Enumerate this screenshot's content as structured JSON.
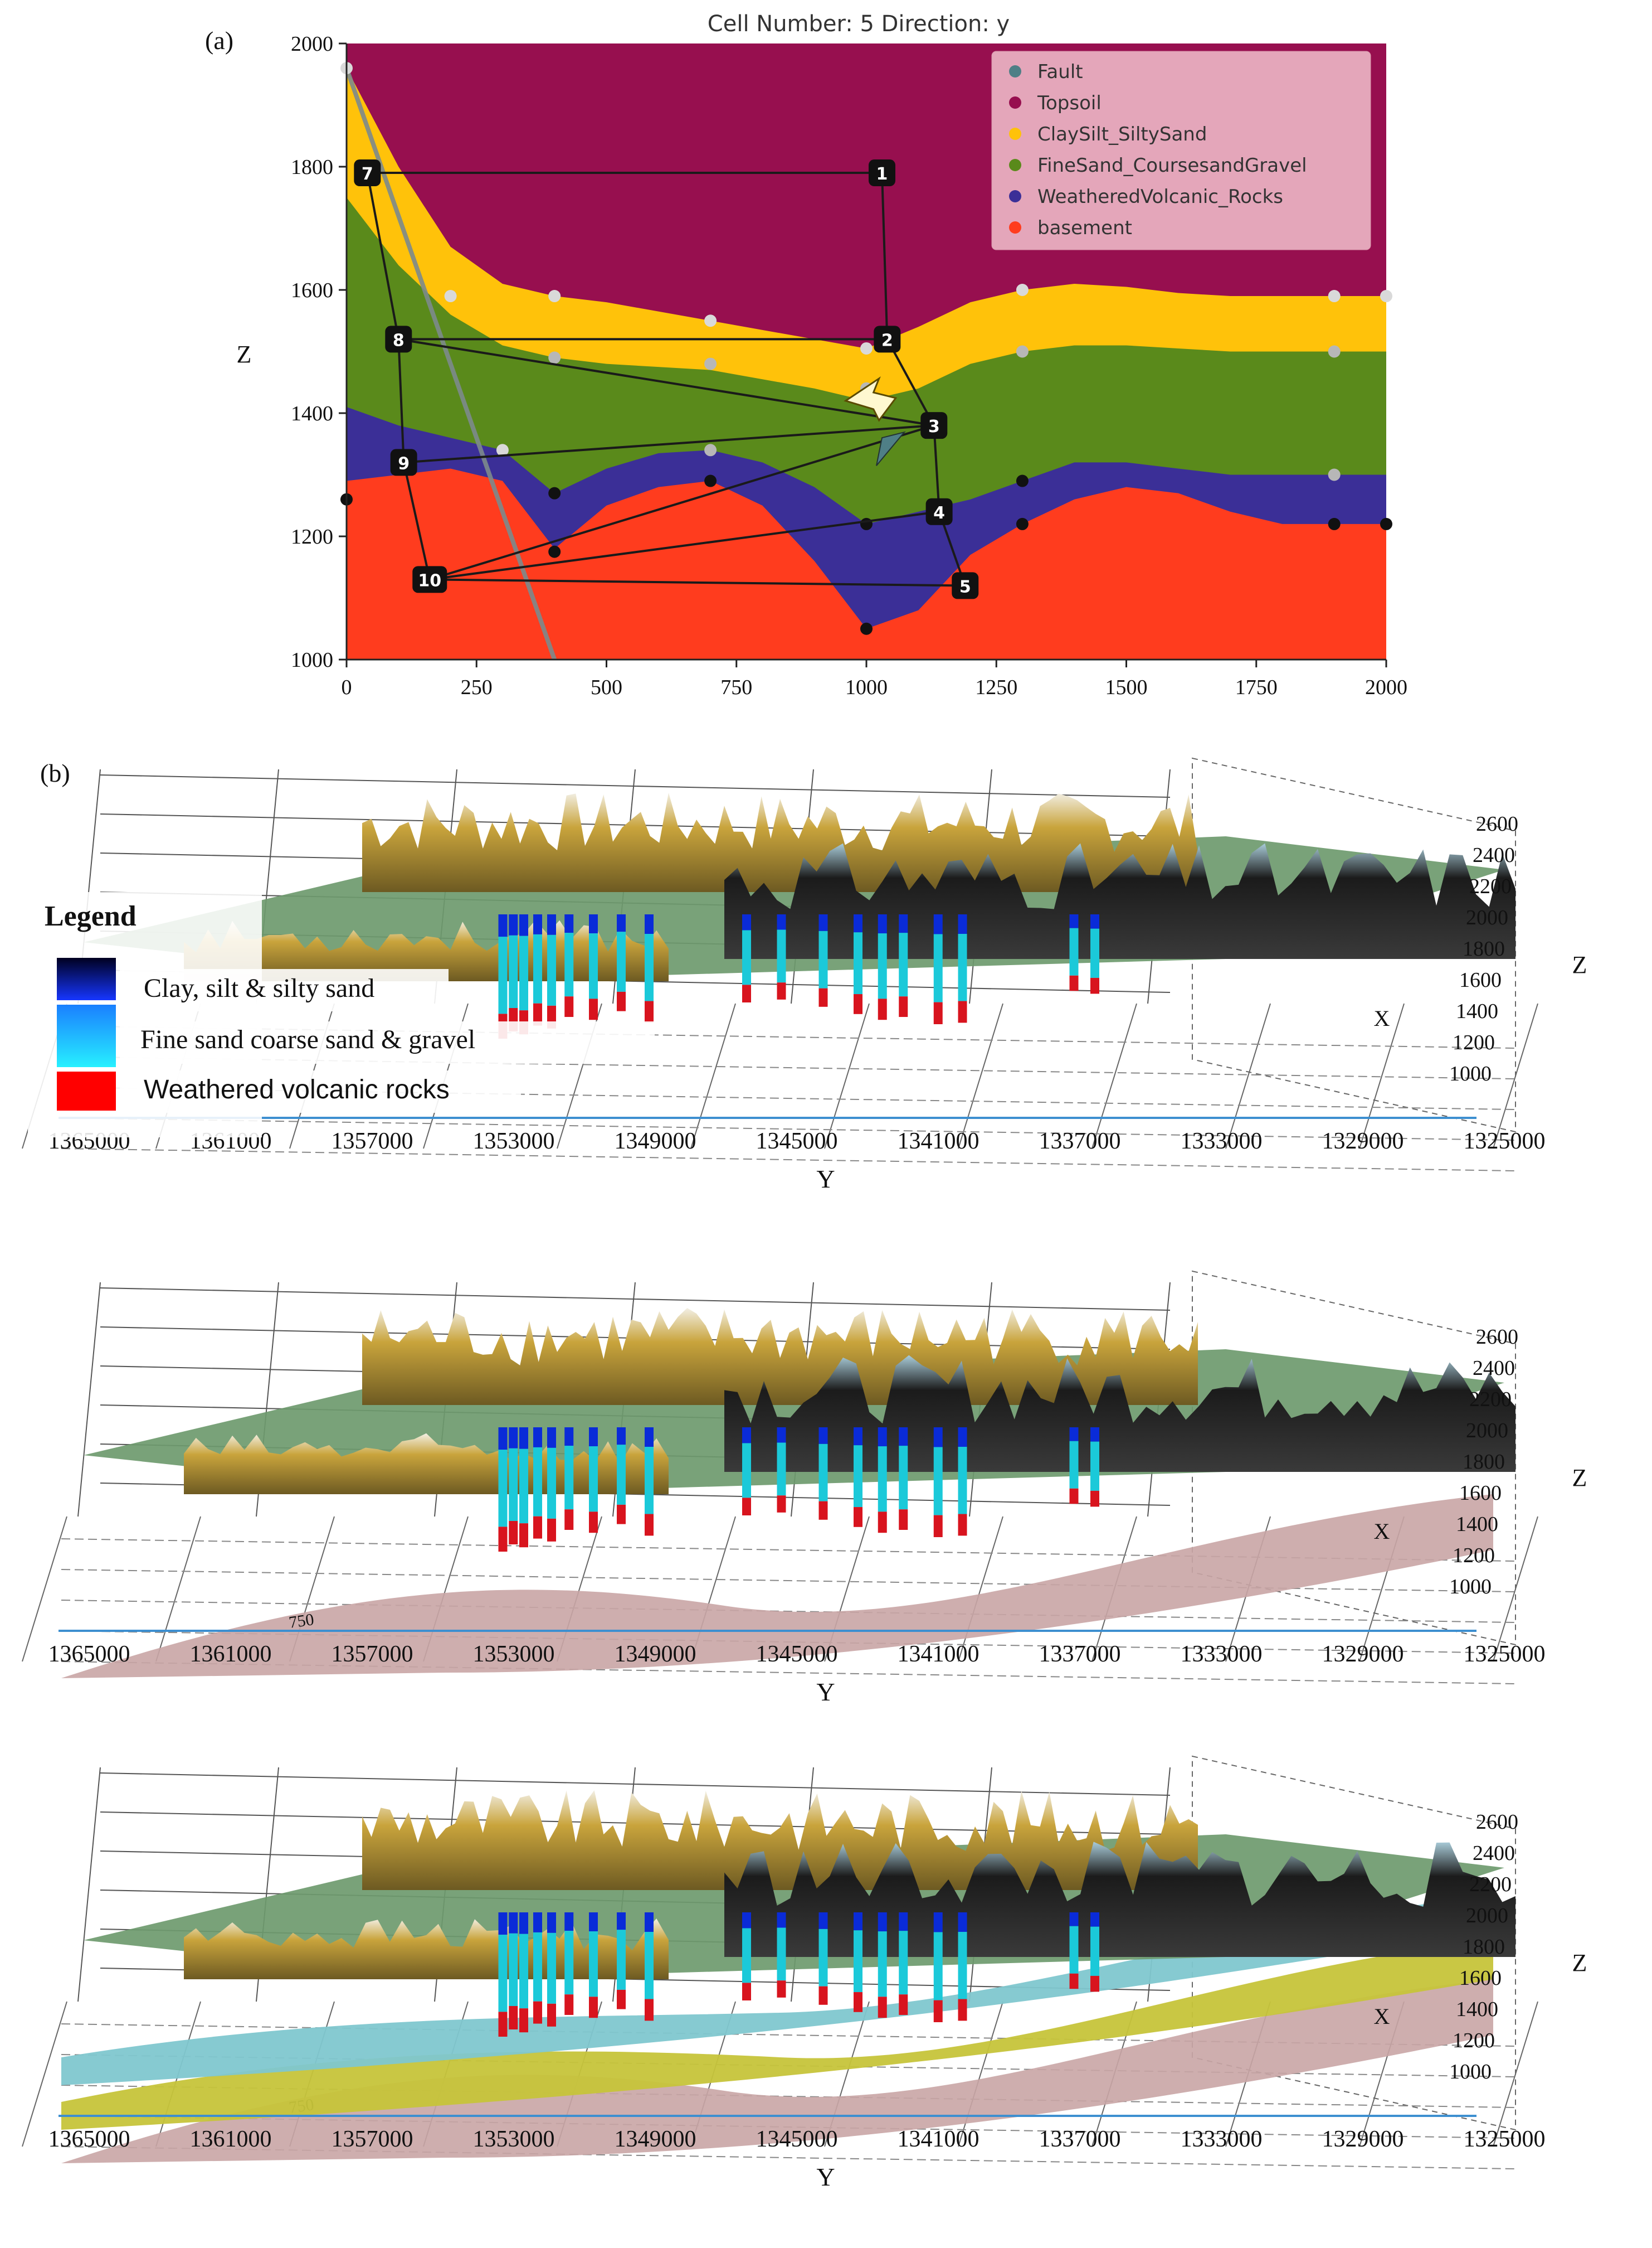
{
  "figure": {
    "panel_a_label": "(a)",
    "panel_b_label": "(b)"
  },
  "colors": {
    "fault": "#4f7f86",
    "topsoil": "#970f4f",
    "clay": "#ffc20a",
    "finesand": "#5a8a1b",
    "volcanic": "#3b2f97",
    "basement": "#ff3c1e",
    "well_clay": "#0a2bd8",
    "well_sand": "#1bc9d9",
    "well_volc": "#d8141e",
    "terrain_green": "#6e9a6e",
    "terrain_gold": "#c9a43c",
    "surface_pink": "#c9a5a5",
    "surface_cyan": "#7fc7cf",
    "surface_yellow": "#c6c43a"
  },
  "chart_data": [
    {
      "type": "area",
      "title": "Cell Number: 5 Direction: y",
      "xlabel": "",
      "ylabel": "Z",
      "xlim": [
        0,
        2000
      ],
      "ylim": [
        1000,
        2000
      ],
      "xticks": [
        0,
        250,
        500,
        750,
        1000,
        1250,
        1500,
        1750,
        2000
      ],
      "yticks": [
        1000,
        1200,
        1400,
        1600,
        1800,
        2000
      ],
      "legend": [
        "Fault",
        "Topsoil",
        "ClaySilt_SiltySand",
        "FineSand_CoursesandGravel",
        "WeatheredVolcanic_Rocks",
        "basement"
      ],
      "legend_position": "top-right",
      "layers": {
        "x": [
          0,
          100,
          200,
          300,
          400,
          500,
          600,
          700,
          800,
          900,
          1000,
          1100,
          1200,
          1300,
          1400,
          1500,
          1600,
          1700,
          1800,
          1900,
          2000
        ],
        "clay_top": [
          1960,
          1800,
          1670,
          1610,
          1590,
          1580,
          1565,
          1550,
          1535,
          1520,
          1505,
          1540,
          1580,
          1600,
          1610,
          1605,
          1595,
          1590,
          1590,
          1590,
          1590
        ],
        "sand_top": [
          1750,
          1640,
          1560,
          1510,
          1490,
          1480,
          1475,
          1470,
          1455,
          1440,
          1420,
          1440,
          1480,
          1500,
          1510,
          1510,
          1505,
          1500,
          1500,
          1500,
          1500
        ],
        "volc_top": [
          1410,
          1380,
          1360,
          1340,
          1270,
          1310,
          1335,
          1340,
          1320,
          1280,
          1220,
          1240,
          1260,
          1290,
          1320,
          1320,
          1310,
          1300,
          1300,
          1300,
          1300
        ],
        "basement_top": [
          1290,
          1300,
          1310,
          1290,
          1180,
          1250,
          1280,
          1290,
          1250,
          1160,
          1050,
          1080,
          1170,
          1220,
          1260,
          1280,
          1270,
          1240,
          1220,
          1220,
          1220
        ]
      },
      "fault_line": {
        "x": [
          0,
          400
        ],
        "z": [
          1960,
          1000
        ]
      },
      "surface_points": {
        "x": [
          0,
          200,
          300,
          400,
          700,
          1000,
          1300,
          1900,
          2000
        ],
        "z": [
          1960,
          1590,
          1340,
          1590,
          1550,
          1505,
          1600,
          1590,
          1590
        ]
      },
      "contact_points": [
        {
          "x": 400,
          "z": 1490
        },
        {
          "x": 700,
          "z": 1480
        },
        {
          "x": 1000,
          "z": 1440
        },
        {
          "x": 1300,
          "z": 1500
        },
        {
          "x": 1900,
          "z": 1500
        },
        {
          "x": 400,
          "z": 1270
        },
        {
          "x": 700,
          "z": 1340
        },
        {
          "x": 1000,
          "z": 1220
        },
        {
          "x": 1300,
          "z": 1290
        },
        {
          "x": 1900,
          "z": 1300
        },
        {
          "x": 0,
          "z": 1260
        },
        {
          "x": 400,
          "z": 1175
        },
        {
          "x": 700,
          "z": 1290
        },
        {
          "x": 1000,
          "z": 1050
        },
        {
          "x": 1300,
          "z": 1220
        },
        {
          "x": 1900,
          "z": 1220
        },
        {
          "x": 2000,
          "z": 1220
        }
      ],
      "path_nodes": [
        {
          "id": "1",
          "x": 1030,
          "z": 1790
        },
        {
          "id": "2",
          "x": 1040,
          "z": 1520
        },
        {
          "id": "3",
          "x": 1130,
          "z": 1380
        },
        {
          "id": "4",
          "x": 1140,
          "z": 1240
        },
        {
          "id": "5",
          "x": 1190,
          "z": 1120
        },
        {
          "id": "7",
          "x": 40,
          "z": 1790
        },
        {
          "id": "8",
          "x": 100,
          "z": 1520
        },
        {
          "id": "9",
          "x": 110,
          "z": 1320
        },
        {
          "id": "10",
          "x": 160,
          "z": 1130
        }
      ],
      "path_edges": [
        [
          "7",
          "1"
        ],
        [
          "1",
          "2"
        ],
        [
          "2",
          "3"
        ],
        [
          "3",
          "4"
        ],
        [
          "4",
          "5"
        ],
        [
          "7",
          "8"
        ],
        [
          "8",
          "9"
        ],
        [
          "9",
          "10"
        ],
        [
          "8",
          "2"
        ],
        [
          "8",
          "3"
        ],
        [
          "9",
          "3"
        ],
        [
          "10",
          "4"
        ],
        [
          "10",
          "5"
        ],
        [
          "10",
          "3"
        ]
      ]
    },
    {
      "type": "scatter",
      "title": "",
      "xlabel": "Y",
      "ylabel": "Z",
      "xaxis_label_side": "X",
      "yticks": [
        2600,
        2400,
        2200,
        2000,
        1800,
        1600,
        1400,
        1200,
        1000
      ],
      "xticks": [
        1365000,
        1361000,
        1357000,
        1353000,
        1349000,
        1345000,
        1341000,
        1337000,
        1333000,
        1329000,
        1325000
      ],
      "contour_label": "750",
      "legend_title": "Legend",
      "legend": [
        "Clay, silt & silty sand",
        "Fine sand coarse sand & gravel",
        "Weathered volcanic rocks"
      ],
      "panels": [
        {
          "name": "boreholes",
          "surfaces": []
        },
        {
          "name": "basement-surface",
          "surfaces": [
            "pink"
          ]
        },
        {
          "name": "all-surfaces",
          "surfaces": [
            "pink",
            "yellow",
            "cyan"
          ]
        }
      ],
      "wells": [
        {
          "y": 1352800,
          "depth": 0.55
        },
        {
          "y": 1352500,
          "depth": 0.5
        },
        {
          "y": 1352200,
          "depth": 0.52
        },
        {
          "y": 1351800,
          "depth": 0.46
        },
        {
          "y": 1351400,
          "depth": 0.48
        },
        {
          "y": 1350900,
          "depth": 0.4
        },
        {
          "y": 1350200,
          "depth": 0.42
        },
        {
          "y": 1349400,
          "depth": 0.36
        },
        {
          "y": 1348600,
          "depth": 0.44
        },
        {
          "y": 1345800,
          "depth": 0.3
        },
        {
          "y": 1344800,
          "depth": 0.28
        },
        {
          "y": 1343600,
          "depth": 0.33
        },
        {
          "y": 1342600,
          "depth": 0.38
        },
        {
          "y": 1341900,
          "depth": 0.42
        },
        {
          "y": 1341300,
          "depth": 0.4
        },
        {
          "y": 1340300,
          "depth": 0.45
        },
        {
          "y": 1339600,
          "depth": 0.44
        },
        {
          "y": 1336400,
          "depth": 0.22
        },
        {
          "y": 1335800,
          "depth": 0.24
        }
      ]
    }
  ]
}
